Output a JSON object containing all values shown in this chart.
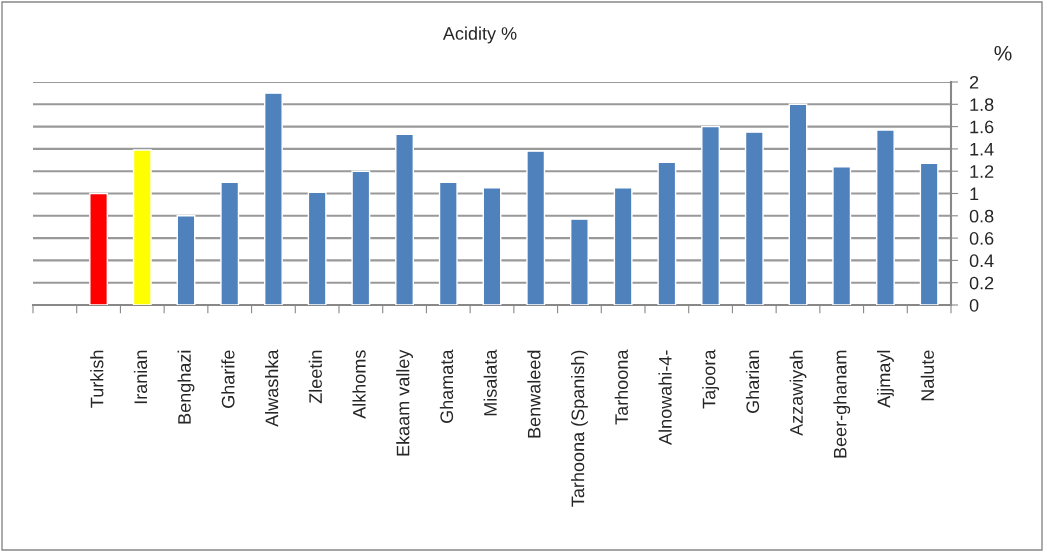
{
  "chart_data": {
    "type": "bar",
    "title": "Acidity %",
    "ylabel": "%",
    "categories": [
      null,
      "Turkish",
      "Iranian",
      "Benghazi",
      "Gharife",
      "Alwashka",
      "Zleetin",
      "Alkhoms",
      "Ekaam valley",
      "Ghamata",
      "Misalata",
      "Benwaleed",
      "Tarhoona (Spanish)",
      "Tarhoona",
      "Alnowahi-4-",
      "Tajoora",
      "Gharian",
      "Azzawiyah",
      "Beer-ghanam",
      "Ajjmayl",
      "Nalute"
    ],
    "values": [
      null,
      1.0,
      1.39,
      0.8,
      1.1,
      1.9,
      1.01,
      1.2,
      1.53,
      1.1,
      1.05,
      1.38,
      0.77,
      1.05,
      1.28,
      1.6,
      1.55,
      1.8,
      1.24,
      1.57,
      1.27
    ],
    "colors": [
      "#4f81bd",
      "#ff0000",
      "#ffff00",
      "#4f81bd",
      "#4f81bd",
      "#4f81bd",
      "#4f81bd",
      "#4f81bd",
      "#4f81bd",
      "#4f81bd",
      "#4f81bd",
      "#4f81bd",
      "#4f81bd",
      "#4f81bd",
      "#4f81bd",
      "#4f81bd",
      "#4f81bd",
      "#4f81bd",
      "#4f81bd",
      "#4f81bd",
      "#4f81bd"
    ],
    "ylim": [
      0,
      2
    ],
    "yticks": [
      0,
      0.2,
      0.4,
      0.6,
      0.8,
      1,
      1.2,
      1.4,
      1.6,
      1.8,
      2
    ],
    "grid": "y"
  }
}
